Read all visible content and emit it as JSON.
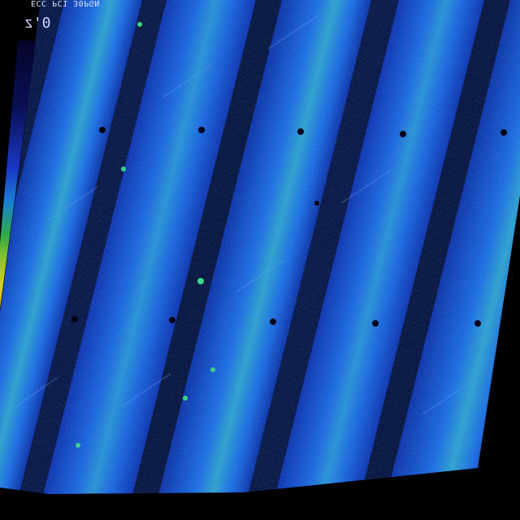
{
  "overlay": {
    "header_text": "ECC PC1 30PGN",
    "temperature_label": "0'z",
    "colormap_stops": [
      "#05052a",
      "#0a0f55",
      "#1a39c8",
      "#1a7fd6",
      "#2ca84c",
      "#8fc42a",
      "#d7d21a",
      "#e0a316"
    ]
  },
  "image": {
    "description_free": true,
    "palette": {
      "stripe_dark": "#050a3e",
      "stripe_mid": "#0c2ba8",
      "stripe_bright": "#1560e0",
      "hotspot": "#37d28a",
      "background": "#000000"
    }
  }
}
